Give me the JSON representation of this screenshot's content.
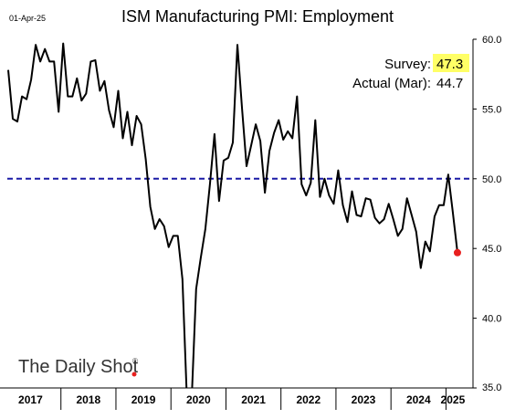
{
  "chart_data": {
    "type": "line",
    "title": "ISM Manufacturing PMI: Employment",
    "date_label": "01-Apr-25",
    "source": "The Daily Shot",
    "xlabel": "",
    "ylabel": "",
    "ylim": [
      35,
      60
    ],
    "yticks": [
      "35.0",
      "40.0",
      "45.0",
      "50.0",
      "55.0",
      "60.0"
    ],
    "x_categories": [
      "2017",
      "2018",
      "2019",
      "2020",
      "2021",
      "2022",
      "2023",
      "2024",
      "2025"
    ],
    "reference_line": {
      "value": 50,
      "style": "dashed",
      "color": "#1a1aa6"
    },
    "annotations": {
      "survey_label": "Survey:",
      "survey_value": "47.3",
      "actual_label": "Actual (Mar):",
      "actual_value": "44.7"
    },
    "colors": {
      "line": "#000000",
      "highlight": "#ffff66",
      "marker": "#e8201f",
      "axis": "#000000"
    },
    "grid": false,
    "series": [
      {
        "start": "2017-01",
        "values": [
          57.8,
          54.3,
          54.1,
          55.9,
          55.7,
          57.1,
          59.6,
          58.4,
          59.3,
          58.4,
          58.4,
          54.8,
          59.7,
          55.9,
          55.9,
          57.2,
          55.6,
          56.1,
          58.4,
          58.5,
          56.3,
          57.0,
          54.9,
          53.7,
          56.3,
          52.9,
          54.8,
          52.4,
          54.5,
          53.9,
          51.4,
          48.0,
          46.4,
          47.1,
          46.6,
          45.1,
          45.9,
          45.9,
          42.8,
          32.1,
          31.4,
          42.1,
          44.3,
          46.4,
          49.6,
          53.2,
          48.4,
          51.3,
          51.5,
          52.6,
          59.6,
          55.1,
          50.9,
          52.4,
          53.9,
          52.7,
          49.0,
          52.0,
          53.3,
          54.2,
          52.8,
          53.4,
          52.9,
          55.9,
          49.6,
          48.8,
          49.7,
          54.2,
          48.7,
          50.0,
          48.8,
          48.2,
          50.6,
          48.1,
          46.9,
          49.1,
          47.4,
          47.3,
          48.6,
          48.5,
          47.2,
          46.8,
          47.1,
          48.2,
          47.1,
          45.9,
          46.4,
          48.6,
          47.4,
          46.2,
          43.6,
          45.5,
          44.8,
          47.3,
          48.1,
          48.1,
          50.3,
          47.6,
          44.7
        ]
      }
    ]
  }
}
